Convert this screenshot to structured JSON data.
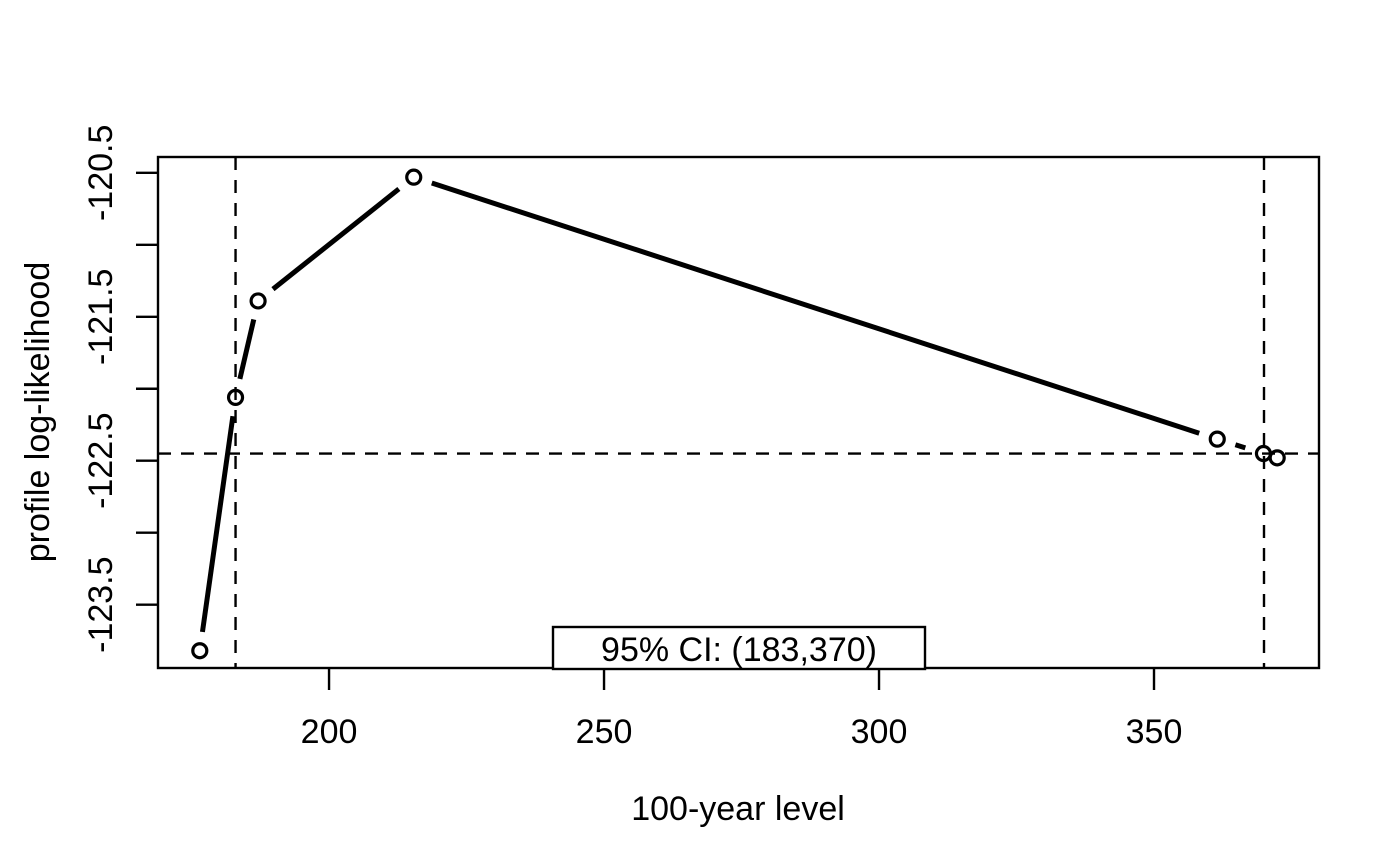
{
  "page": {
    "background": "#ffffff",
    "foreground": "#000000"
  },
  "chart_data": {
    "type": "line",
    "subtype": "profile-log-likelihood-curve-r-base-type-b",
    "title": "",
    "xlabel": "100-year level",
    "ylabel": "profile log-likelihood",
    "xlim": [
      168.9,
      380.0
    ],
    "ylim": [
      -123.94,
      -120.39
    ],
    "grid": false,
    "legend_position": "bottom-center-inside",
    "series": [
      {
        "name": "profile log-likelihood",
        "marker": "open-circle",
        "line_style": "solid-with-marker-gaps",
        "color": "#000000",
        "points": [
          {
            "x": 176.5,
            "y": -123.82
          },
          {
            "x": 183.0,
            "y": -122.06
          },
          {
            "x": 187.1,
            "y": -121.39
          },
          {
            "x": 215.4,
            "y": -120.53
          },
          {
            "x": 361.5,
            "y": -122.35
          },
          {
            "x": 369.9,
            "y": -122.45
          },
          {
            "x": 372.4,
            "y": -122.48
          }
        ]
      }
    ],
    "x_ticks": [
      {
        "value": 200,
        "label": "200"
      },
      {
        "value": 250,
        "label": "250"
      },
      {
        "value": 300,
        "label": "300"
      },
      {
        "value": 350,
        "label": "350"
      }
    ],
    "y_ticks": [
      {
        "value": -120.5,
        "label": "-120.5"
      },
      {
        "value": -121.0,
        "label": ""
      },
      {
        "value": -121.5,
        "label": "-121.5"
      },
      {
        "value": -122.0,
        "label": ""
      },
      {
        "value": -122.5,
        "label": "-122.5"
      },
      {
        "value": -123.0,
        "label": ""
      },
      {
        "value": -123.5,
        "label": "-123.5"
      }
    ],
    "reference_lines": {
      "style": "dashed",
      "horizontal_y": -122.45,
      "vertical_x": [
        183,
        370
      ]
    },
    "annotation_box": {
      "text": "95% CI: (183,370)"
    },
    "colors": {
      "line": "#000000",
      "reference": "#000000",
      "background": "#ffffff"
    }
  }
}
